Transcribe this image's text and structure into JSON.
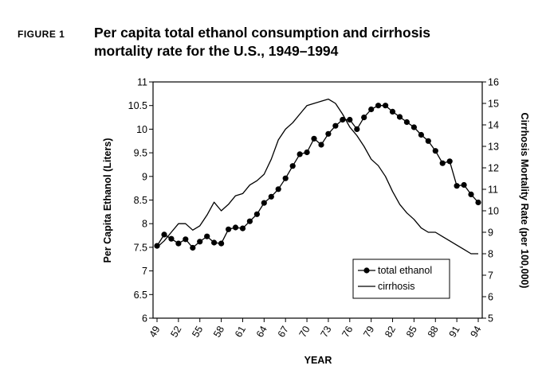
{
  "figure": {
    "label": "FIGURE 1",
    "title_line1": "Per capita total ethanol consumption and cirrhosis",
    "title_line2": "mortality rate for the U.S., 1949–1994"
  },
  "chart_data": {
    "type": "line",
    "title": "Per capita total ethanol consumption and cirrhosis mortality rate for the U.S., 1949–1994",
    "xlabel": "YEAR",
    "ylabel_left": "Per Capita Ethanol (Liters)",
    "ylabel_right": "Cirrhosis Mortality Rate (per 100,000)",
    "x_tick_labels": [
      "49",
      "52",
      "55",
      "58",
      "61",
      "64",
      "67",
      "70",
      "73",
      "76",
      "79",
      "82",
      "85",
      "88",
      "91",
      "94"
    ],
    "y_left_ticks": [
      "6",
      "6.5",
      "7",
      "7.5",
      "8",
      "8.5",
      "9",
      "9.5",
      "10",
      "10.5",
      "11"
    ],
    "y_right_ticks": [
      "5",
      "6",
      "7",
      "8",
      "9",
      "10",
      "11",
      "12",
      "13",
      "14",
      "15",
      "16"
    ],
    "ylim_left": [
      6,
      11
    ],
    "ylim_right": [
      5,
      16
    ],
    "xlim": [
      49,
      94
    ],
    "grid": false,
    "legend_position": "bottom-right",
    "x": [
      49,
      50,
      51,
      52,
      53,
      54,
      55,
      56,
      57,
      58,
      59,
      60,
      61,
      62,
      63,
      64,
      65,
      66,
      67,
      68,
      69,
      70,
      71,
      72,
      73,
      74,
      75,
      76,
      77,
      78,
      79,
      80,
      81,
      82,
      83,
      84,
      85,
      86,
      87,
      88,
      89,
      90,
      91,
      92,
      93,
      94
    ],
    "series": [
      {
        "name": "total ethanol",
        "axis": "left",
        "marker": "circle",
        "values": [
          7.53,
          7.77,
          7.68,
          7.58,
          7.67,
          7.49,
          7.62,
          7.73,
          7.6,
          7.58,
          7.88,
          7.92,
          7.9,
          8.05,
          8.2,
          8.44,
          8.57,
          8.73,
          8.96,
          9.22,
          9.47,
          9.51,
          9.8,
          9.67,
          9.9,
          10.07,
          10.2,
          10.2,
          10.0,
          10.25,
          10.42,
          10.5,
          10.5,
          10.37,
          10.26,
          10.15,
          10.04,
          9.88,
          9.75,
          9.54,
          9.28,
          9.32,
          8.8,
          8.82,
          8.62,
          8.45
        ]
      },
      {
        "name": "cirrhosis",
        "axis": "right",
        "marker": "none",
        "values": [
          8.3,
          8.6,
          9.0,
          9.4,
          9.4,
          9.1,
          9.3,
          9.8,
          10.4,
          10.0,
          10.3,
          10.7,
          10.8,
          11.2,
          11.4,
          11.7,
          12.4,
          13.3,
          13.8,
          14.1,
          14.5,
          14.9,
          15.0,
          15.1,
          15.2,
          15.0,
          14.5,
          13.9,
          13.5,
          13.0,
          12.4,
          12.1,
          11.6,
          10.9,
          10.3,
          9.9,
          9.6,
          9.2,
          9.0,
          9.0,
          8.8,
          8.6,
          8.4,
          8.2,
          8.0,
          8.0
        ]
      }
    ]
  }
}
